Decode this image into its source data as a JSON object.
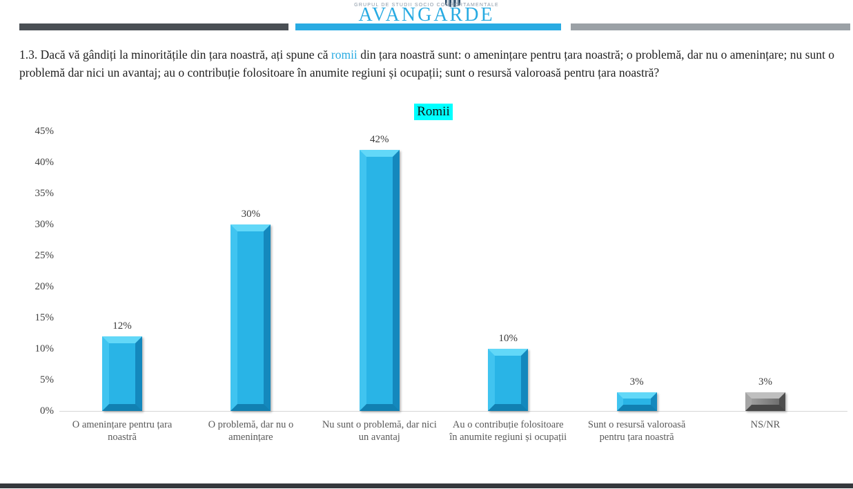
{
  "header": {
    "logo_tagline": "GRUPUL DE STUDII SOCIO COMPORTAMENTALE",
    "logo_brand": "AVANGARDE"
  },
  "question": {
    "prefix": "1.3. Dacă vă gândiți la minoritățile din țara noastră, ați spune că ",
    "highlight": "romii",
    "suffix": " din țara noastră sunt: o amenințare pentru țara noastră; o problemă, dar nu o amenințare; nu sunt o problemă dar nici un avantaj; au o contribuție folositoare în anumite regiuni și ocupații; sunt o resursă valoroasă pentru țara noastră?"
  },
  "chart_data": {
    "type": "bar",
    "title": "Romii",
    "categories": [
      "O amenințare pentru țara noastră",
      "O problemă, dar nu o amenințare",
      "Nu sunt o problemă, dar nici un avantaj",
      "Au o contribuție folositoare în anumite regiuni și ocupații",
      "Sunt o resursă valoroasă pentru țara noastră",
      "NS/NR"
    ],
    "category_lines": [
      [
        "O amenințare pentru țara",
        "noastră"
      ],
      [
        "O problemă, dar nu o",
        "amenințare"
      ],
      [
        "Nu sunt o problemă, dar nici",
        "un avantaj"
      ],
      [
        "Au o contribuție folositoare",
        "în anumite regiuni și ocupații"
      ],
      [
        "Sunt o resursă valoroasă",
        "pentru țara noastră"
      ],
      [
        "NS/NR"
      ]
    ],
    "values": [
      12,
      30,
      42,
      10,
      3,
      3
    ],
    "value_labels": [
      "12%",
      "30%",
      "42%",
      "10%",
      "3%",
      "3%"
    ],
    "bar_styles": [
      "cyan",
      "cyan",
      "cyan",
      "cyan",
      "cyan",
      "gray"
    ],
    "y_tick_labels": [
      "0%",
      "5%",
      "10%",
      "15%",
      "20%",
      "25%",
      "30%",
      "35%",
      "40%",
      "45%"
    ],
    "y_step": 5,
    "ylim": [
      0,
      45
    ],
    "grid": false,
    "legend": null,
    "xlabel": "",
    "ylabel": ""
  },
  "colors": {
    "accent_blue": "#29ABE2",
    "title_highlight": "#00FFFF",
    "bar_face": "#29B4E6",
    "bar_light": "#62D8F8",
    "bar_left": "#40C4F0",
    "bar_dark": "#1488BD",
    "bar_darker": "#1180B2",
    "gray_face_light": "#9C9C9C",
    "gray_face_dark": "#6F6F6F",
    "gray_light": "#BFBFBF",
    "gray_left": "#A5A5A5",
    "gray_dark": "#4E4E4E",
    "gray_darker": "#474747",
    "header_bar_dark": "#4A4F54",
    "header_bar_gray": "#9BA1A6",
    "footer_bar": "#35383C",
    "text_dark": "#1E1E1E",
    "label_gray": "#595959"
  }
}
